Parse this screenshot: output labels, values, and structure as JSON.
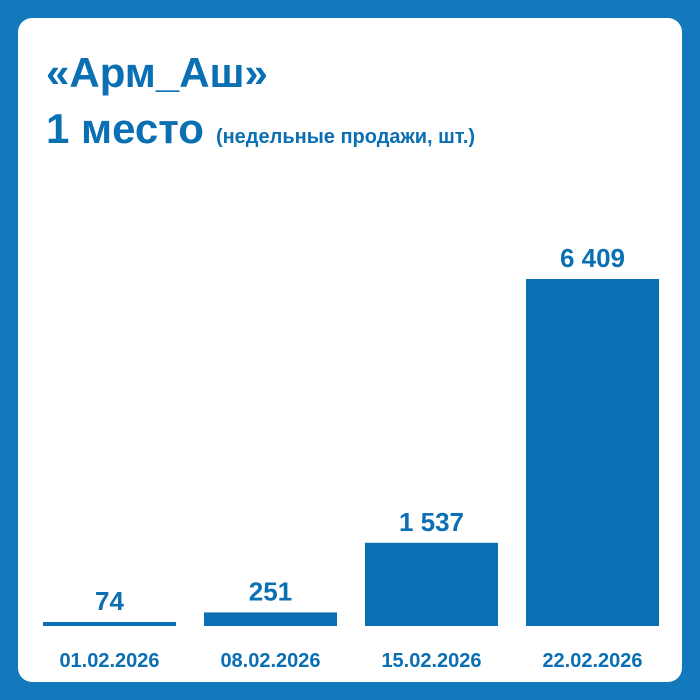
{
  "header": {
    "title": "«Арм_Аш»",
    "place": "1 место",
    "subtitle": "(недельные продажи, шт.)"
  },
  "colors": {
    "background": "#1478bd",
    "card": "#ffffff",
    "bar": "#0a6fb3",
    "text": "#0a6fb3"
  },
  "chart_data": {
    "type": "bar",
    "title": "«Арм_Аш» 1 место (недельные продажи, шт.)",
    "categories": [
      "01.02.2026",
      "08.02.2026",
      "15.02.2026",
      "22.02.2026"
    ],
    "values": [
      74,
      251,
      1537,
      6409
    ],
    "value_labels": [
      "74",
      "251",
      "1 537",
      "6 409"
    ],
    "xlabel": "",
    "ylabel": "",
    "ylim": [
      0,
      6409
    ],
    "grid": false,
    "legend": "none"
  }
}
